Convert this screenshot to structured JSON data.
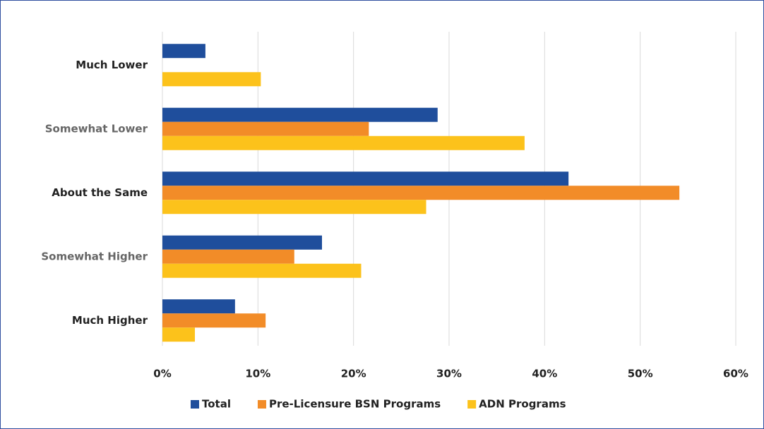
{
  "chart_data": {
    "type": "bar",
    "orientation": "horizontal",
    "categories": [
      "Much Lower",
      "Somewhat Lower",
      "About the Same",
      "Somewhat Higher",
      "Much Higher"
    ],
    "series": [
      {
        "name": "Total",
        "color": "#1f4e9c",
        "values": [
          4.5,
          28.8,
          42.5,
          16.7,
          7.6
        ]
      },
      {
        "name": "Pre-Licensure BSN Programs",
        "color": "#f28c28",
        "values": [
          0,
          21.6,
          54.1,
          13.8,
          10.8
        ]
      },
      {
        "name": "ADN Programs",
        "color": "#fcc21b",
        "values": [
          10.3,
          37.9,
          27.6,
          20.8,
          3.4
        ]
      }
    ],
    "xlim": [
      0,
      60
    ],
    "xticks": [
      {
        "value": 0,
        "label": "0%"
      },
      {
        "value": 10,
        "label": "10%"
      },
      {
        "value": 20,
        "label": "20%"
      },
      {
        "value": 30,
        "label": "30%"
      },
      {
        "value": 40,
        "label": "40%"
      },
      {
        "value": 50,
        "label": "50%"
      },
      {
        "value": 60,
        "label": "60%"
      }
    ],
    "grid": true,
    "legend": "bottom"
  }
}
